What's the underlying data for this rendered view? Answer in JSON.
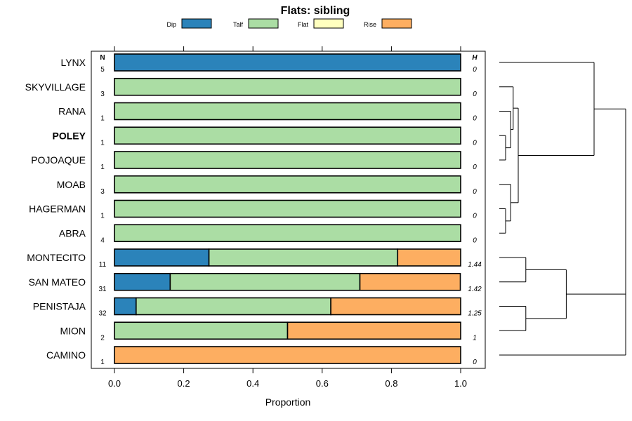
{
  "chart_data": {
    "type": "bar",
    "orientation": "horizontal",
    "stacked": true,
    "title": "Flats: sibling",
    "xlabel": "Proportion",
    "ylabel": "",
    "xlim": [
      0,
      1
    ],
    "xticks": [
      "0.0",
      "0.2",
      "0.4",
      "0.6",
      "0.8",
      "1.0"
    ],
    "xtick_values": [
      0,
      0.2,
      0.4,
      0.6,
      0.8,
      1.0
    ],
    "n_header": "N",
    "h_header": "H",
    "legend": [
      {
        "name": "Dip",
        "color": "#2b83ba"
      },
      {
        "name": "Talf",
        "color": "#abdda4"
      },
      {
        "name": "Flat",
        "color": "#ffffbf"
      },
      {
        "name": "Rise",
        "color": "#fdae61"
      }
    ],
    "legend_position": "top",
    "rows": [
      {
        "label": "LYNX",
        "bold": false,
        "n": "5",
        "h": "0",
        "values": [
          1.0,
          0,
          0,
          0
        ]
      },
      {
        "label": "SKYVILLAGE",
        "bold": false,
        "n": "3",
        "h": "0",
        "values": [
          0,
          1.0,
          0,
          0
        ]
      },
      {
        "label": "RANA",
        "bold": false,
        "n": "1",
        "h": "0",
        "values": [
          0,
          1.0,
          0,
          0
        ]
      },
      {
        "label": "POLEY",
        "bold": true,
        "n": "1",
        "h": "0",
        "values": [
          0,
          1.0,
          0,
          0
        ]
      },
      {
        "label": "POJOAQUE",
        "bold": false,
        "n": "1",
        "h": "0",
        "values": [
          0,
          1.0,
          0,
          0
        ]
      },
      {
        "label": "MOAB",
        "bold": false,
        "n": "3",
        "h": "0",
        "values": [
          0,
          1.0,
          0,
          0
        ]
      },
      {
        "label": "HAGERMAN",
        "bold": false,
        "n": "1",
        "h": "0",
        "values": [
          0,
          1.0,
          0,
          0
        ]
      },
      {
        "label": "ABRA",
        "bold": false,
        "n": "4",
        "h": "0",
        "values": [
          0,
          1.0,
          0,
          0
        ]
      },
      {
        "label": "MONTECITO",
        "bold": false,
        "n": "11",
        "h": "1.44",
        "values": [
          0.273,
          0.545,
          0,
          0.182
        ]
      },
      {
        "label": "SAN MATEO",
        "bold": false,
        "n": "31",
        "h": "1.42",
        "values": [
          0.161,
          0.548,
          0,
          0.29
        ]
      },
      {
        "label": "PENISTAJA",
        "bold": false,
        "n": "32",
        "h": "1.25",
        "values": [
          0.0625,
          0.5625,
          0,
          0.375
        ]
      },
      {
        "label": "MION",
        "bold": false,
        "n": "2",
        "h": "1",
        "values": [
          0,
          0.5,
          0,
          0.5
        ]
      },
      {
        "label": "CAMINO",
        "bold": false,
        "n": "1",
        "h": "0",
        "values": [
          0,
          0,
          0,
          1.0
        ]
      }
    ],
    "dendrogram": {
      "leaf_order": [
        "LYNX",
        "SKYVILLAGE",
        "RANA",
        "POLEY",
        "POJOAQUE",
        "MOAB",
        "HAGERMAN",
        "ABRA",
        "MONTECITO",
        "SAN MATEO",
        "PENISTAJA",
        "MION",
        "CAMINO"
      ],
      "merges": [
        {
          "left": "POLEY",
          "right": "POJOAQUE",
          "height": 0.05
        },
        {
          "left": "HAGERMAN",
          "right": "ABRA",
          "height": 0.05
        },
        {
          "left": "RANA",
          "right": "POLEY+POJOAQUE",
          "height": 0.09
        },
        {
          "left": "MOAB",
          "right": "HAGERMAN+ABRA",
          "height": 0.09
        },
        {
          "left": "SKYVILLAGE",
          "right": "RANA+POLEY+POJOAQUE",
          "height": 0.11
        },
        {
          "left": "SKYVILLAGE..POJOAQUE",
          "right": "MOAB..ABRA",
          "height": 0.15
        },
        {
          "left": "MONTECITO",
          "right": "SAN MATEO",
          "height": 0.21
        },
        {
          "left": "PENISTAJA",
          "right": "MION",
          "height": 0.21
        },
        {
          "left": "MONTECITO+SAN MATEO",
          "right": "PENISTAJA+MION",
          "height": 0.53
        },
        {
          "left": "LYNX",
          "right": "SKYVILLAGE..ABRA",
          "height": 0.75
        },
        {
          "left": "LYNX..ABRA",
          "right": "MONTECITO..MION",
          "height": 1.0
        },
        {
          "left": "LYNX..MION",
          "right": "CAMINO",
          "height": 1.0
        }
      ]
    }
  }
}
